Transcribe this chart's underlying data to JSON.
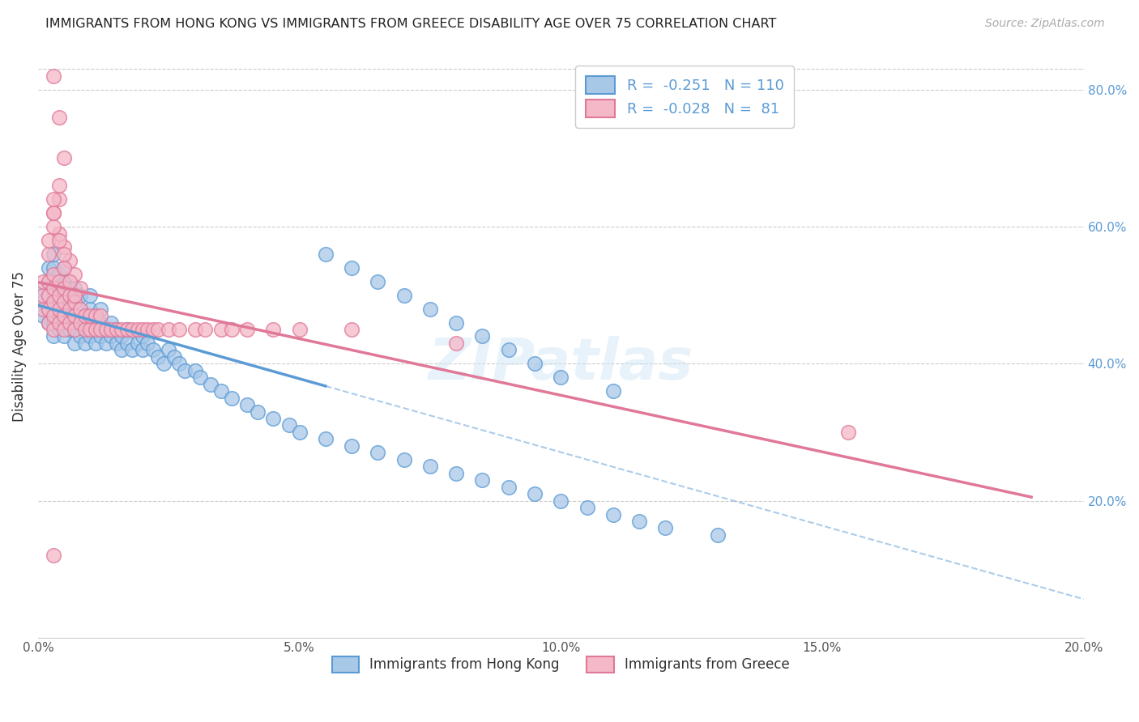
{
  "title": "IMMIGRANTS FROM HONG KONG VS IMMIGRANTS FROM GREECE DISABILITY AGE OVER 75 CORRELATION CHART",
  "source": "Source: ZipAtlas.com",
  "ylabel": "Disability Age Over 75",
  "legend_label_1": "Immigrants from Hong Kong",
  "legend_label_2": "Immigrants from Greece",
  "r1": "-0.251",
  "n1": "110",
  "r2": "-0.028",
  "n2": "81",
  "color_hk": "#a8c8e8",
  "color_hk_edge": "#5b9bd5",
  "color_gr": "#f4b8c8",
  "color_gr_edge": "#e07898",
  "xlim": [
    0.0,
    0.2
  ],
  "ylim": [
    0.0,
    0.85
  ],
  "x_ticks": [
    0.0,
    0.05,
    0.1,
    0.15,
    0.2
  ],
  "x_tick_labels": [
    "0.0%",
    "5.0%",
    "10.0%",
    "15.0%",
    "20.0%"
  ],
  "y_ticks_right": [
    0.2,
    0.4,
    0.6,
    0.8
  ],
  "y_tick_labels_right": [
    "20.0%",
    "40.0%",
    "60.0%",
    "80.0%"
  ],
  "watermark": "ZIPatlas",
  "hk_x": [
    0.001,
    0.001,
    0.001,
    0.002,
    0.002,
    0.002,
    0.002,
    0.002,
    0.003,
    0.003,
    0.003,
    0.003,
    0.003,
    0.003,
    0.003,
    0.004,
    0.004,
    0.004,
    0.004,
    0.004,
    0.005,
    0.005,
    0.005,
    0.005,
    0.005,
    0.005,
    0.006,
    0.006,
    0.006,
    0.006,
    0.007,
    0.007,
    0.007,
    0.007,
    0.007,
    0.008,
    0.008,
    0.008,
    0.008,
    0.009,
    0.009,
    0.009,
    0.01,
    0.01,
    0.01,
    0.01,
    0.011,
    0.011,
    0.011,
    0.012,
    0.012,
    0.012,
    0.013,
    0.013,
    0.014,
    0.014,
    0.015,
    0.015,
    0.016,
    0.016,
    0.017,
    0.017,
    0.018,
    0.019,
    0.02,
    0.02,
    0.021,
    0.022,
    0.023,
    0.024,
    0.025,
    0.026,
    0.027,
    0.028,
    0.03,
    0.031,
    0.033,
    0.035,
    0.037,
    0.04,
    0.042,
    0.045,
    0.048,
    0.05,
    0.055,
    0.06,
    0.065,
    0.07,
    0.075,
    0.08,
    0.085,
    0.09,
    0.095,
    0.1,
    0.105,
    0.11,
    0.115,
    0.12,
    0.13,
    0.055,
    0.06,
    0.065,
    0.07,
    0.075,
    0.08,
    0.085,
    0.09,
    0.095,
    0.1,
    0.11
  ],
  "hk_y": [
    0.47,
    0.49,
    0.51,
    0.46,
    0.48,
    0.5,
    0.52,
    0.54,
    0.44,
    0.46,
    0.48,
    0.5,
    0.52,
    0.54,
    0.56,
    0.45,
    0.47,
    0.49,
    0.51,
    0.53,
    0.44,
    0.46,
    0.48,
    0.5,
    0.52,
    0.54,
    0.45,
    0.47,
    0.49,
    0.51,
    0.43,
    0.45,
    0.47,
    0.49,
    0.51,
    0.44,
    0.46,
    0.48,
    0.5,
    0.43,
    0.45,
    0.47,
    0.44,
    0.46,
    0.48,
    0.5,
    0.43,
    0.45,
    0.47,
    0.44,
    0.46,
    0.48,
    0.43,
    0.45,
    0.44,
    0.46,
    0.43,
    0.45,
    0.42,
    0.44,
    0.43,
    0.45,
    0.42,
    0.43,
    0.42,
    0.44,
    0.43,
    0.42,
    0.41,
    0.4,
    0.42,
    0.41,
    0.4,
    0.39,
    0.39,
    0.38,
    0.37,
    0.36,
    0.35,
    0.34,
    0.33,
    0.32,
    0.31,
    0.3,
    0.29,
    0.28,
    0.27,
    0.26,
    0.25,
    0.24,
    0.23,
    0.22,
    0.21,
    0.2,
    0.19,
    0.18,
    0.17,
    0.16,
    0.15,
    0.56,
    0.54,
    0.52,
    0.5,
    0.48,
    0.46,
    0.44,
    0.42,
    0.4,
    0.38,
    0.36
  ],
  "gr_x": [
    0.001,
    0.001,
    0.001,
    0.002,
    0.002,
    0.002,
    0.002,
    0.003,
    0.003,
    0.003,
    0.003,
    0.003,
    0.004,
    0.004,
    0.004,
    0.004,
    0.005,
    0.005,
    0.005,
    0.005,
    0.006,
    0.006,
    0.006,
    0.007,
    0.007,
    0.007,
    0.008,
    0.008,
    0.009,
    0.009,
    0.01,
    0.01,
    0.011,
    0.011,
    0.012,
    0.012,
    0.013,
    0.014,
    0.015,
    0.016,
    0.017,
    0.018,
    0.019,
    0.02,
    0.021,
    0.022,
    0.023,
    0.025,
    0.027,
    0.03,
    0.032,
    0.035,
    0.037,
    0.04,
    0.045,
    0.05,
    0.06,
    0.08,
    0.003,
    0.004,
    0.005,
    0.006,
    0.007,
    0.008,
    0.002,
    0.002,
    0.003,
    0.003,
    0.004,
    0.004,
    0.005,
    0.005,
    0.006,
    0.007,
    0.003,
    0.004,
    0.005,
    0.155,
    0.003,
    0.003,
    0.004
  ],
  "gr_y": [
    0.48,
    0.5,
    0.52,
    0.46,
    0.48,
    0.5,
    0.52,
    0.45,
    0.47,
    0.49,
    0.51,
    0.53,
    0.46,
    0.48,
    0.5,
    0.52,
    0.45,
    0.47,
    0.49,
    0.51,
    0.46,
    0.48,
    0.5,
    0.45,
    0.47,
    0.49,
    0.46,
    0.48,
    0.45,
    0.47,
    0.45,
    0.47,
    0.45,
    0.47,
    0.45,
    0.47,
    0.45,
    0.45,
    0.45,
    0.45,
    0.45,
    0.45,
    0.45,
    0.45,
    0.45,
    0.45,
    0.45,
    0.45,
    0.45,
    0.45,
    0.45,
    0.45,
    0.45,
    0.45,
    0.45,
    0.45,
    0.45,
    0.43,
    0.62,
    0.59,
    0.57,
    0.55,
    0.53,
    0.51,
    0.56,
    0.58,
    0.6,
    0.62,
    0.64,
    0.58,
    0.54,
    0.56,
    0.52,
    0.5,
    0.82,
    0.76,
    0.7,
    0.3,
    0.12,
    0.64,
    0.66
  ]
}
